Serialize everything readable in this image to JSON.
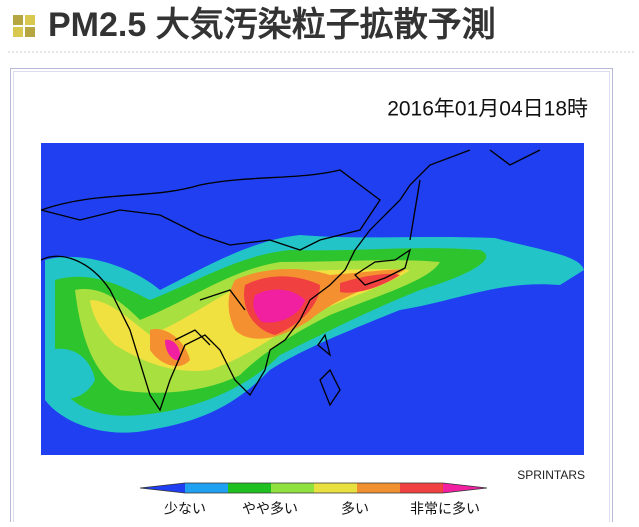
{
  "header": {
    "title": "PM2.5 大気汚染粒子拡散予測"
  },
  "panel": {
    "timestamp": "2016年01月04日18時",
    "credit": "SPRINTARS"
  },
  "legend": {
    "labels": [
      "少ない",
      "やや多い",
      "多い",
      "非常に多い"
    ]
  }
}
